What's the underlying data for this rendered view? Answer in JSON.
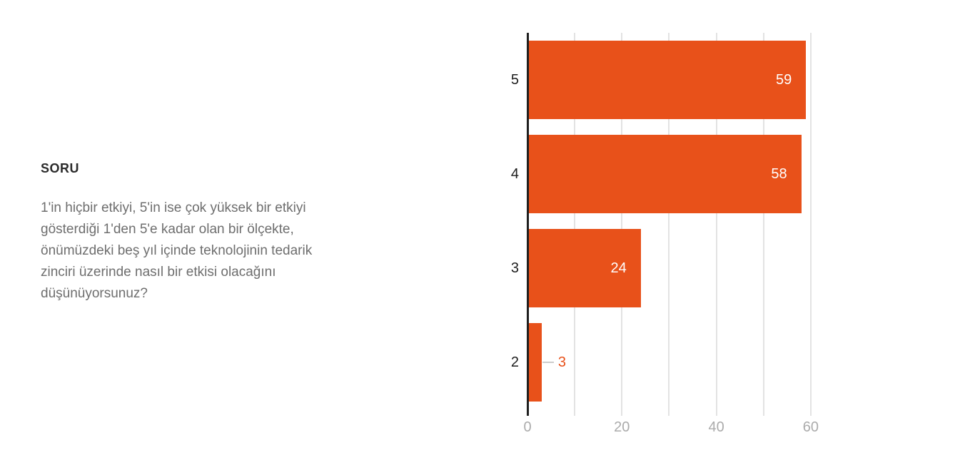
{
  "panel": {
    "title": "SORU",
    "question": "1'in hiçbir etkiyi, 5'in ise çok yüksek bir etkiyi\ngösterdiği 1'den 5'e kadar olan bir ölçekte,\nönümüzdeki beş yıl içinde teknolojinin tedarik\nzinciri üzerinde nasıl bir etkisi olacağını\ndüşünüyorsunuz?"
  },
  "chart_data": {
    "type": "bar",
    "orientation": "horizontal",
    "title": "",
    "xlabel": "",
    "ylabel": "",
    "categories": [
      "5",
      "4",
      "3",
      "2"
    ],
    "values": [
      59,
      58,
      24,
      3
    ],
    "value_label_inside": [
      true,
      true,
      true,
      false
    ],
    "xlim": [
      0,
      60
    ],
    "gridline_step": 10,
    "x_tick_labels": [
      0,
      20,
      40,
      60
    ],
    "grid": true,
    "legend": false,
    "bar_color": "#e8511a",
    "axis_color": "#1f1f1f",
    "gridline_color": "#e3e3e3",
    "tick_label_color": "#ababab",
    "value_label_color_inside": "#ffffff",
    "value_label_color_outside": "#e8511a"
  }
}
